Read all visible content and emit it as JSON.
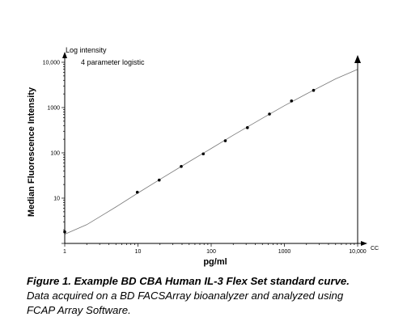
{
  "chart_data": {
    "type": "scatter",
    "xlabel": "pg/ml",
    "ylabel": "Median Fluorescence Intensity",
    "x_scale": "log",
    "y_scale": "log",
    "xlim": [
      1,
      10000
    ],
    "ylim": [
      1,
      10000
    ],
    "x_ticks": [
      "1",
      "10",
      "100",
      "1000",
      "10,000"
    ],
    "y_ticks": [
      "10",
      "100",
      "1000",
      "10,000"
    ],
    "x_axis_end_label": "CC",
    "annotations": [
      "Log intensity",
      "4 parameter logistic"
    ],
    "grid": false,
    "series": [
      {
        "x": [
          1,
          9.8,
          19.5,
          39,
          78,
          156,
          312.5,
          625,
          1250,
          2500
        ],
        "y": [
          1.8,
          13.5,
          25,
          50,
          95,
          185,
          360,
          720,
          1400,
          2400
        ]
      }
    ],
    "fit_curve": {
      "x": [
        1,
        2,
        5,
        10,
        20,
        50,
        100,
        200,
        500,
        1000,
        2000,
        5000,
        10000
      ],
      "y": [
        1.6,
        2.6,
        6.4,
        13,
        26,
        64,
        125,
        245,
        580,
        1100,
        2000,
        4300,
        7000
      ]
    }
  },
  "caption": {
    "bold": "Figure 1. Example BD CBA Human IL-3 Flex Set standard curve.",
    "body": " Data acquired on a BD FACSArray bioanalyzer and analyzed using FCAP Array Software."
  }
}
